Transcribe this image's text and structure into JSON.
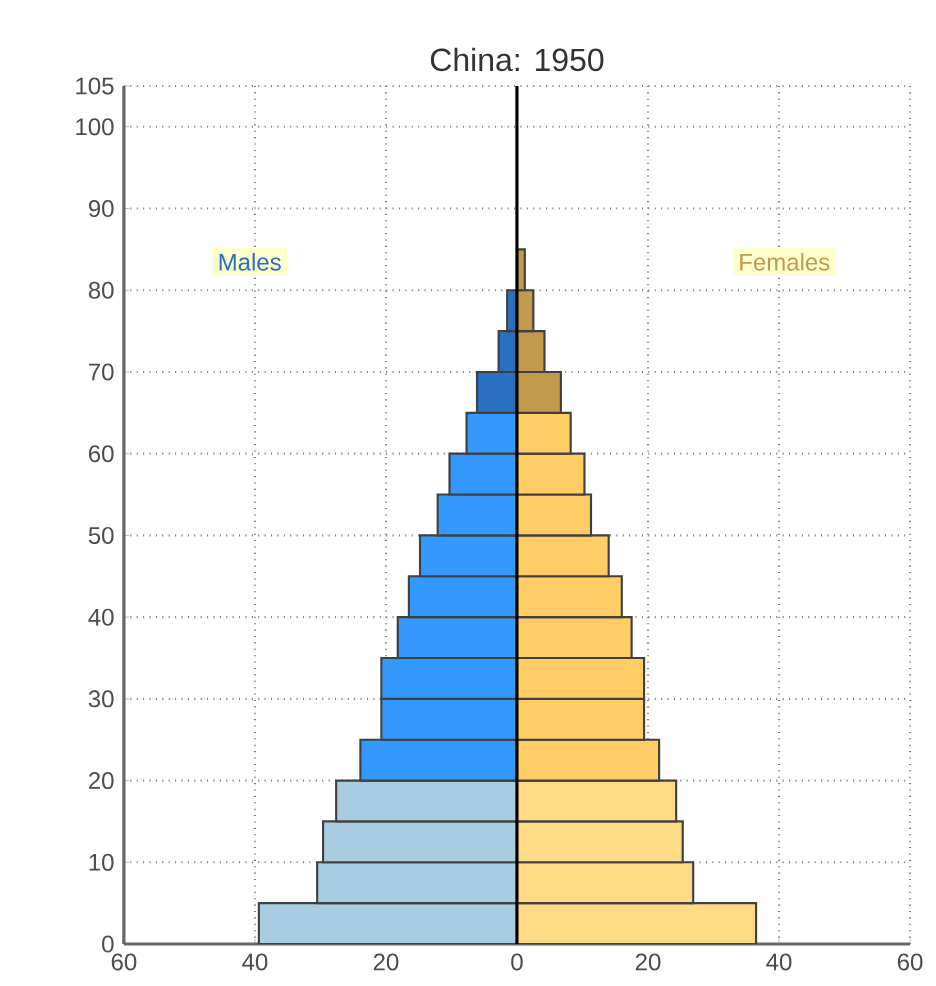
{
  "chart_data": {
    "type": "bar",
    "title": "China: 1950",
    "orientation": "horizontal",
    "x": [
      2.5,
      7.5,
      12.5,
      17.5,
      22.5,
      27.5,
      32.5,
      37.5,
      42.5,
      47.5,
      52.5,
      57.5,
      62.5,
      67.5,
      72.5,
      77.5,
      82.5
    ],
    "series": [
      {
        "name": "Males",
        "values": [
          -39.4,
          -30.5,
          -29.6,
          -27.6,
          -23.9,
          -20.7,
          -20.7,
          -18.2,
          -16.5,
          -14.8,
          -12.1,
          -10.3,
          -7.7,
          -6.1,
          -2.8,
          -1.5,
          null
        ],
        "colors": [
          "#a8cde0",
          "#a8cde0",
          "#a8cde0",
          "#a8cde0",
          "#3399ff",
          "#3399ff",
          "#3399ff",
          "#3399ff",
          "#3399ff",
          "#3399ff",
          "#3399ff",
          "#3399ff",
          "#3399ff",
          "#2a70c0",
          "#2a70c0",
          "#2a70c0",
          "#2a70c0"
        ]
      },
      {
        "name": "Females",
        "values": [
          36.5,
          26.9,
          25.3,
          24.3,
          21.7,
          19.4,
          19.4,
          17.5,
          16.0,
          14.0,
          11.3,
          10.3,
          8.2,
          6.7,
          4.2,
          2.5,
          1.2
        ],
        "colors": [
          "#ffdb88",
          "#ffdb88",
          "#ffdb88",
          "#ffdb88",
          "#ffcc66",
          "#ffcc66",
          "#ffcc66",
          "#ffcc66",
          "#ffcc66",
          "#ffcc66",
          "#ffcc66",
          "#ffcc66",
          "#ffcc66",
          "#c19a4e",
          "#c19a4e",
          "#c19a4e",
          "#c19a4e"
        ]
      }
    ],
    "xlim": [
      -60,
      60
    ],
    "xticks": [
      {
        "value": -60,
        "label": "60"
      },
      {
        "value": -40,
        "label": "40"
      },
      {
        "value": -20,
        "label": "20"
      },
      0,
      20,
      40,
      60
    ],
    "ylim": [
      0,
      105
    ],
    "yticks": [
      0,
      10,
      20,
      30,
      40,
      50,
      60,
      70,
      80,
      90,
      100,
      105
    ],
    "grid": true,
    "stacked": true,
    "ref_lines": [
      {
        "axis": "x",
        "value": 0,
        "color": "#000000"
      }
    ]
  }
}
